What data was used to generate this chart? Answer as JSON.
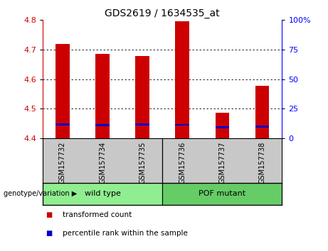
{
  "title": "GDS2619 / 1634535_at",
  "samples": [
    "GSM157732",
    "GSM157734",
    "GSM157735",
    "GSM157736",
    "GSM157737",
    "GSM157738"
  ],
  "red_heights": [
    4.72,
    4.685,
    4.678,
    4.795,
    4.487,
    4.578
  ],
  "blue_bottom": [
    4.443,
    4.441,
    4.443,
    4.442,
    4.433,
    4.436
  ],
  "blue_segment_size": 0.006,
  "ymin": 4.4,
  "ymax": 4.8,
  "yticks_left": [
    4.4,
    4.5,
    4.6,
    4.7,
    4.8
  ],
  "yticks_right": [
    0,
    25,
    50,
    75,
    100
  ],
  "bar_color": "#cc0000",
  "blue_color": "#0000cc",
  "bar_width": 0.35,
  "genotype_label": "genotype/variation",
  "legend_items": [
    {
      "color": "#cc0000",
      "label": "transformed count"
    },
    {
      "color": "#0000cc",
      "label": "percentile rank within the sample"
    }
  ],
  "background_xlabel": "#c8c8c8",
  "wt_color": "#90ee90",
  "pof_color": "#66cc66",
  "title_fontsize": 10,
  "tick_fontsize": 8,
  "label_fontsize": 8
}
